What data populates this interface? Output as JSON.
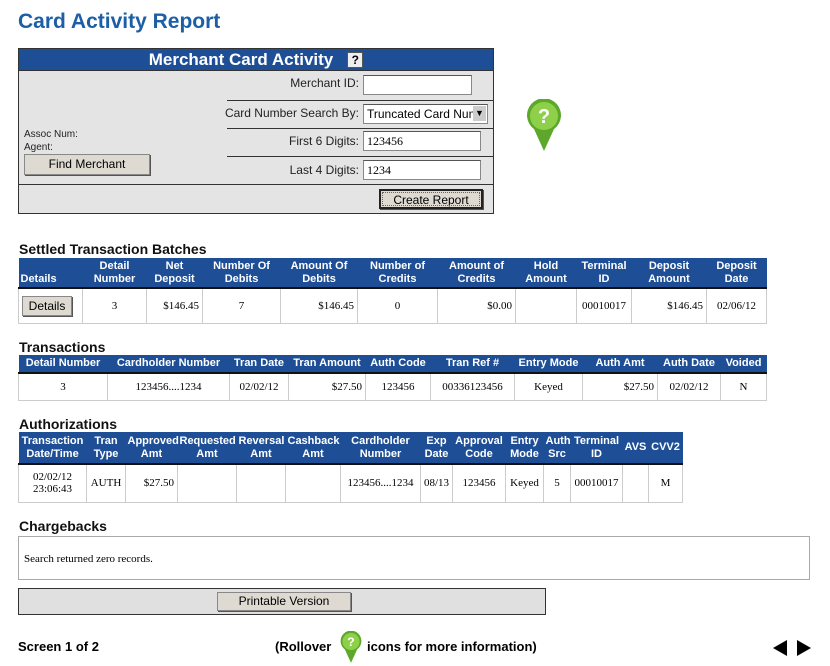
{
  "title": "Card Activity Report",
  "panel": {
    "title": "Merchant Card Activity",
    "help": "?",
    "merchant_id_label": "Merchant ID:",
    "merchant_id_value": "",
    "search_by_label": "Card Number Search By:",
    "search_by_value": "Truncated Card Numb",
    "first6_label": "First 6 Digits:",
    "first6_value": "123456",
    "last4_label": "Last 4 Digits:",
    "last4_value": "1234",
    "assoc_label": "Assoc Num:",
    "agent_label": "Agent:",
    "find_merchant": "Find Merchant",
    "create_report": "Create Report"
  },
  "settled": {
    "title": "Settled Transaction Batches",
    "headers": [
      "Details",
      "Detail Number",
      "Net Deposit",
      "Number Of Debits",
      "Amount Of Debits",
      "Number of Credits",
      "Amount of Credits",
      "Hold Amount",
      "Terminal ID",
      "Deposit Amount",
      "Deposit Date"
    ],
    "rows": [
      [
        "Details",
        "3",
        "$146.45",
        "7",
        "$146.45",
        "0",
        "$0.00",
        "",
        "00010017",
        "$146.45",
        "02/06/12"
      ]
    ]
  },
  "transactions": {
    "title": "Transactions",
    "headers": [
      "Detail Number",
      "Cardholder Number",
      "Tran Date",
      "Tran Amount",
      "Auth Code",
      "Tran Ref #",
      "Entry Mode",
      "Auth Amt",
      "Auth Date",
      "Voided"
    ],
    "rows": [
      [
        "3",
        "123456....1234",
        "02/02/12",
        "$27.50",
        "123456",
        "00336123456",
        "Keyed",
        "$27.50",
        "02/02/12",
        "N"
      ]
    ]
  },
  "authorizations": {
    "title": "Authorizations",
    "headers": [
      "Transaction Date/Time",
      "Tran Type",
      "Approved Amt",
      "Requested Amt",
      "Reversal Amt",
      "Cashback Amt",
      "Cardholder Number",
      "Exp Date",
      "Approval Code",
      "Entry Mode",
      "Auth Src",
      "Terminal ID",
      "AVS",
      "CVV2"
    ],
    "rows": [
      [
        "02/02/12 23:06:43",
        "AUTH",
        "$27.50",
        "",
        "",
        "",
        "123456....1234",
        "08/13",
        "123456",
        "Keyed",
        "5",
        "00010017",
        "",
        "M"
      ]
    ]
  },
  "chargebacks": {
    "title": "Chargebacks",
    "message": "Search returned zero records."
  },
  "printable": "Printable Version",
  "footer": {
    "screen": "Screen 1 of 2",
    "rollover_pre": "(Rollover",
    "rollover_post": "icons for more information)"
  },
  "colors": {
    "header_blue": "#1e4f96",
    "title_blue": "#1d5fa6",
    "help_green": "#6ab82e"
  },
  "icons": [
    "help-icon",
    "green-question-pin-icon",
    "prev-arrow-icon",
    "next-arrow-icon"
  ]
}
